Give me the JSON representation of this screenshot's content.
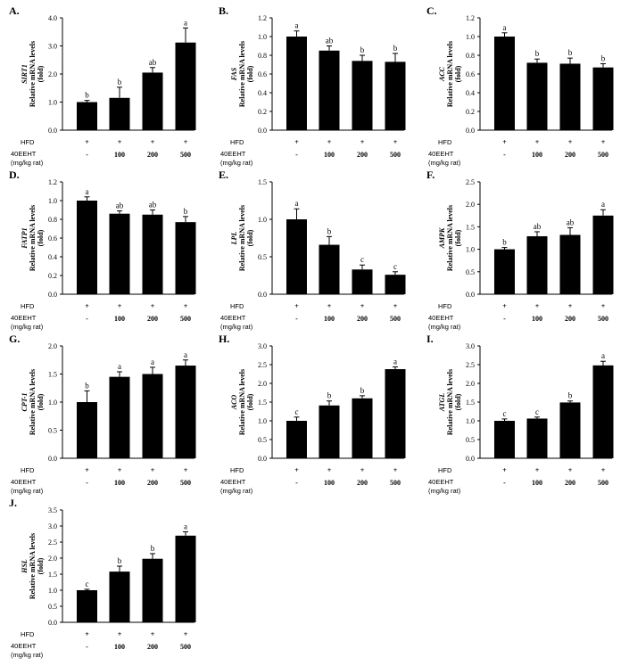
{
  "figure": {
    "row_labels": {
      "hfd": "HFD",
      "treatment": "40EEHT",
      "unit": "(mg/kg rat)"
    },
    "y_axis_common": [
      "Relative mRNA levels",
      "(fold)"
    ],
    "categories": [
      "-",
      "100",
      "200",
      "500"
    ],
    "hfd_marks": [
      "+",
      "+",
      "+",
      "+"
    ]
  },
  "chart_data": [
    {
      "type": "bar",
      "panel": "A.",
      "gene": "SIRT1",
      "ylim": [
        0,
        4.0
      ],
      "yticks": [
        0.0,
        1.0,
        2.0,
        3.0,
        4.0
      ],
      "decimals": 1,
      "values": [
        1.0,
        1.15,
        2.05,
        3.12
      ],
      "errors": [
        0.06,
        0.38,
        0.18,
        0.52
      ],
      "letters": [
        "b",
        "b",
        "ab",
        "a"
      ]
    },
    {
      "type": "bar",
      "panel": "B.",
      "gene": "FAS",
      "ylim": [
        0,
        1.2
      ],
      "yticks": [
        0.0,
        0.2,
        0.4,
        0.6,
        0.8,
        1.0,
        1.2
      ],
      "decimals": 1,
      "values": [
        1.0,
        0.85,
        0.74,
        0.73
      ],
      "errors": [
        0.06,
        0.05,
        0.06,
        0.09
      ],
      "letters": [
        "a",
        "ab",
        "b",
        "b"
      ]
    },
    {
      "type": "bar",
      "panel": "C.",
      "gene": "ACC",
      "ylim": [
        0,
        1.2
      ],
      "yticks": [
        0.0,
        0.2,
        0.4,
        0.6,
        0.8,
        1.0,
        1.2
      ],
      "decimals": 1,
      "values": [
        1.0,
        0.72,
        0.71,
        0.67
      ],
      "errors": [
        0.04,
        0.04,
        0.06,
        0.04
      ],
      "letters": [
        "a",
        "b",
        "b",
        "b"
      ]
    },
    {
      "type": "bar",
      "panel": "D.",
      "gene": "FATP1",
      "ylim": [
        0,
        1.2
      ],
      "yticks": [
        0.0,
        0.2,
        0.4,
        0.6,
        0.8,
        1.0,
        1.2
      ],
      "decimals": 1,
      "values": [
        1.0,
        0.86,
        0.85,
        0.77
      ],
      "errors": [
        0.04,
        0.03,
        0.05,
        0.06
      ],
      "letters": [
        "a",
        "ab",
        "ab",
        "b"
      ]
    },
    {
      "type": "bar",
      "panel": "E.",
      "gene": "LPL",
      "ylim": [
        0,
        1.5
      ],
      "yticks": [
        0.0,
        0.5,
        1.0,
        1.5
      ],
      "decimals": 1,
      "values": [
        1.0,
        0.66,
        0.33,
        0.26
      ],
      "errors": [
        0.14,
        0.11,
        0.06,
        0.04
      ],
      "letters": [
        "a",
        "b",
        "c",
        "c"
      ]
    },
    {
      "type": "bar",
      "panel": "F.",
      "gene": "AMPK",
      "ylim": [
        0,
        2.5
      ],
      "yticks": [
        0.0,
        0.5,
        1.0,
        1.5,
        2.0,
        2.5
      ],
      "decimals": 1,
      "values": [
        1.0,
        1.29,
        1.32,
        1.75
      ],
      "errors": [
        0.04,
        0.1,
        0.16,
        0.13
      ],
      "letters": [
        "b",
        "ab",
        "ab",
        "a"
      ]
    },
    {
      "type": "bar",
      "panel": "G.",
      "gene": "CPT-1",
      "ylim": [
        0,
        2.0
      ],
      "yticks": [
        0.0,
        0.5,
        1.0,
        1.5,
        2.0
      ],
      "decimals": 1,
      "values": [
        1.0,
        1.45,
        1.5,
        1.65
      ],
      "errors": [
        0.2,
        0.09,
        0.12,
        0.1
      ],
      "letters": [
        "b",
        "a",
        "a",
        "a"
      ]
    },
    {
      "type": "bar",
      "panel": "H.",
      "gene": "ACO",
      "ylim": [
        0,
        3.0
      ],
      "yticks": [
        0.0,
        0.5,
        1.0,
        1.5,
        2.0,
        2.5,
        3.0
      ],
      "decimals": 1,
      "values": [
        1.0,
        1.41,
        1.6,
        2.38
      ],
      "errors": [
        0.1,
        0.12,
        0.07,
        0.06
      ],
      "letters": [
        "c",
        "b",
        "b",
        "a"
      ]
    },
    {
      "type": "bar",
      "panel": "I.",
      "gene": "ATGL",
      "ylim": [
        0,
        3.0
      ],
      "yticks": [
        0.0,
        0.5,
        1.0,
        1.5,
        2.0,
        2.5,
        3.0
      ],
      "decimals": 1,
      "values": [
        1.0,
        1.06,
        1.49,
        2.48
      ],
      "errors": [
        0.05,
        0.04,
        0.04,
        0.11
      ],
      "letters": [
        "c",
        "c",
        "b",
        "a"
      ]
    },
    {
      "type": "bar",
      "panel": "J.",
      "gene": "HSL",
      "ylim": [
        0,
        3.5
      ],
      "yticks": [
        0.0,
        0.5,
        1.0,
        1.5,
        2.0,
        2.5,
        3.0,
        3.5
      ],
      "decimals": 1,
      "values": [
        1.0,
        1.58,
        1.98,
        2.7
      ],
      "errors": [
        0.03,
        0.17,
        0.16,
        0.12
      ],
      "letters": [
        "c",
        "b",
        "b",
        "a"
      ]
    }
  ]
}
